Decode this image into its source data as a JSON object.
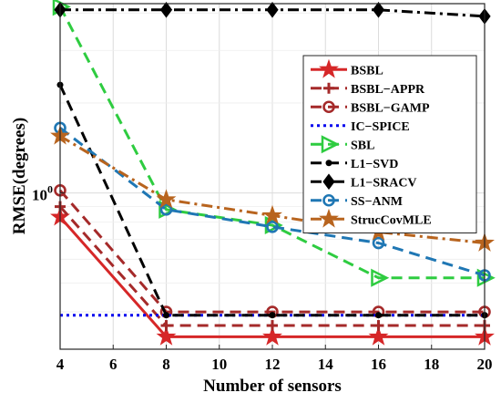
{
  "chart_data": {
    "type": "line",
    "xlabel": "Number of sensors",
    "ylabel": "RMSE(degrees)",
    "x": [
      4,
      8,
      12,
      16,
      20
    ],
    "xticks": [
      4,
      6,
      8,
      10,
      12,
      14,
      16,
      18,
      20
    ],
    "xlim": [
      4,
      20
    ],
    "yscale": "log",
    "ylim": [
      0.3,
      4.3
    ],
    "yticks": [
      {
        "value": 1,
        "label": "10",
        "exponent": "0"
      }
    ],
    "grid": true,
    "legend_position": "top-right",
    "series": [
      {
        "name": "BSBL",
        "color": "#d62728",
        "dash": "solid",
        "marker": "star",
        "values": [
          0.83,
          0.33,
          0.33,
          0.33,
          0.33
        ]
      },
      {
        "name": "BSBL−APPR",
        "color": "#a52a2a",
        "dash": "dashed",
        "marker": "plus",
        "values": [
          0.9,
          0.36,
          0.36,
          0.36,
          0.36
        ]
      },
      {
        "name": "BSBL−GAMP",
        "color": "#a52a2a",
        "dash": "dashed",
        "marker": "circle-open",
        "values": [
          1.02,
          0.4,
          0.4,
          0.4,
          0.4
        ]
      },
      {
        "name": "IC−SPICE",
        "color": "#0000ee",
        "dash": "dotted",
        "marker": "none",
        "values": [
          0.39,
          0.39,
          0.39,
          0.39,
          0.39
        ]
      },
      {
        "name": "SBL",
        "color": "#2ecc40",
        "dash": "dashed",
        "marker": "triangle-right",
        "values": [
          4.2,
          0.88,
          0.78,
          0.52,
          0.52
        ]
      },
      {
        "name": "L1−SVD",
        "color": "#000000",
        "dash": "dashed",
        "marker": "dot",
        "values": [
          2.3,
          0.39,
          0.39,
          0.39,
          0.39
        ]
      },
      {
        "name": "L1−SRACV",
        "color": "#000000",
        "dash": "dashdot",
        "marker": "diamond",
        "values": [
          4.1,
          4.1,
          4.1,
          4.1,
          3.9
        ]
      },
      {
        "name": "SS−ANM",
        "color": "#1f77b4",
        "dash": "dashed",
        "marker": "circle-open",
        "values": [
          1.65,
          0.88,
          0.77,
          0.68,
          0.53
        ]
      },
      {
        "name": "StrucCovMLE",
        "color": "#b8641e",
        "dash": "dashdot",
        "marker": "star",
        "values": [
          1.55,
          0.95,
          0.84,
          0.74,
          0.68
        ]
      }
    ]
  }
}
